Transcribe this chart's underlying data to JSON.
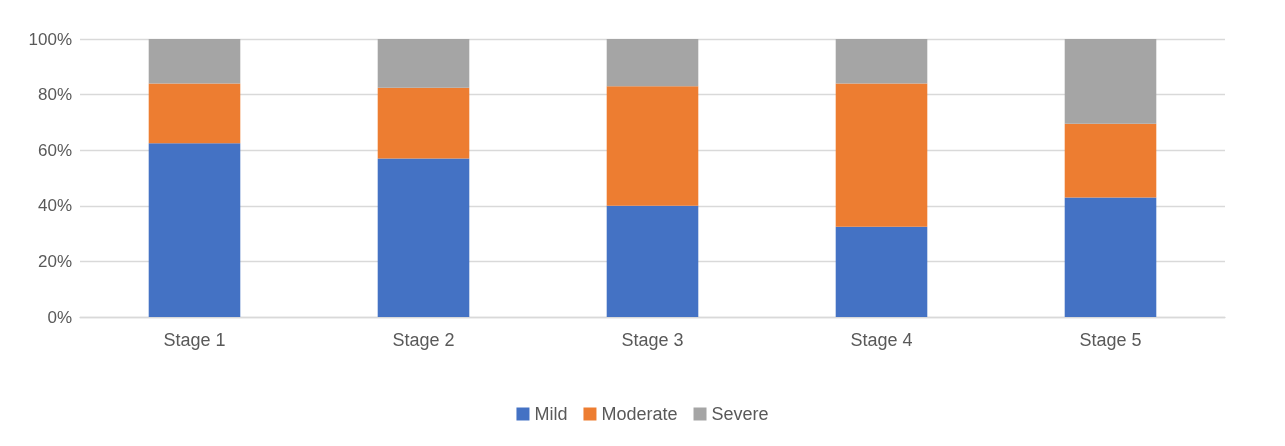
{
  "chart_data": {
    "type": "bar",
    "stacked": true,
    "categories": [
      "Stage 1",
      "Stage 2",
      "Stage 3",
      "Stage 4",
      "Stage 5"
    ],
    "series": [
      {
        "name": "Mild",
        "color": "#4472c4",
        "values": [
          62.5,
          57,
          40,
          32.5,
          43
        ]
      },
      {
        "name": "Moderate",
        "color": "#ed7d31",
        "values": [
          21.5,
          25.5,
          43,
          51.5,
          26.5
        ]
      },
      {
        "name": "Severe",
        "color": "#a5a5a5",
        "values": [
          16,
          17.5,
          17,
          16,
          30.5
        ]
      }
    ],
    "ylim": [
      0,
      100
    ],
    "yticks": [
      {
        "value": 0,
        "label": "0%"
      },
      {
        "value": 20,
        "label": "20%"
      },
      {
        "value": 40,
        "label": "40%"
      },
      {
        "value": 60,
        "label": "60%"
      },
      {
        "value": 80,
        "label": "80%"
      },
      {
        "value": 100,
        "label": "100%"
      }
    ],
    "grid": "y",
    "legend": "bottom"
  }
}
